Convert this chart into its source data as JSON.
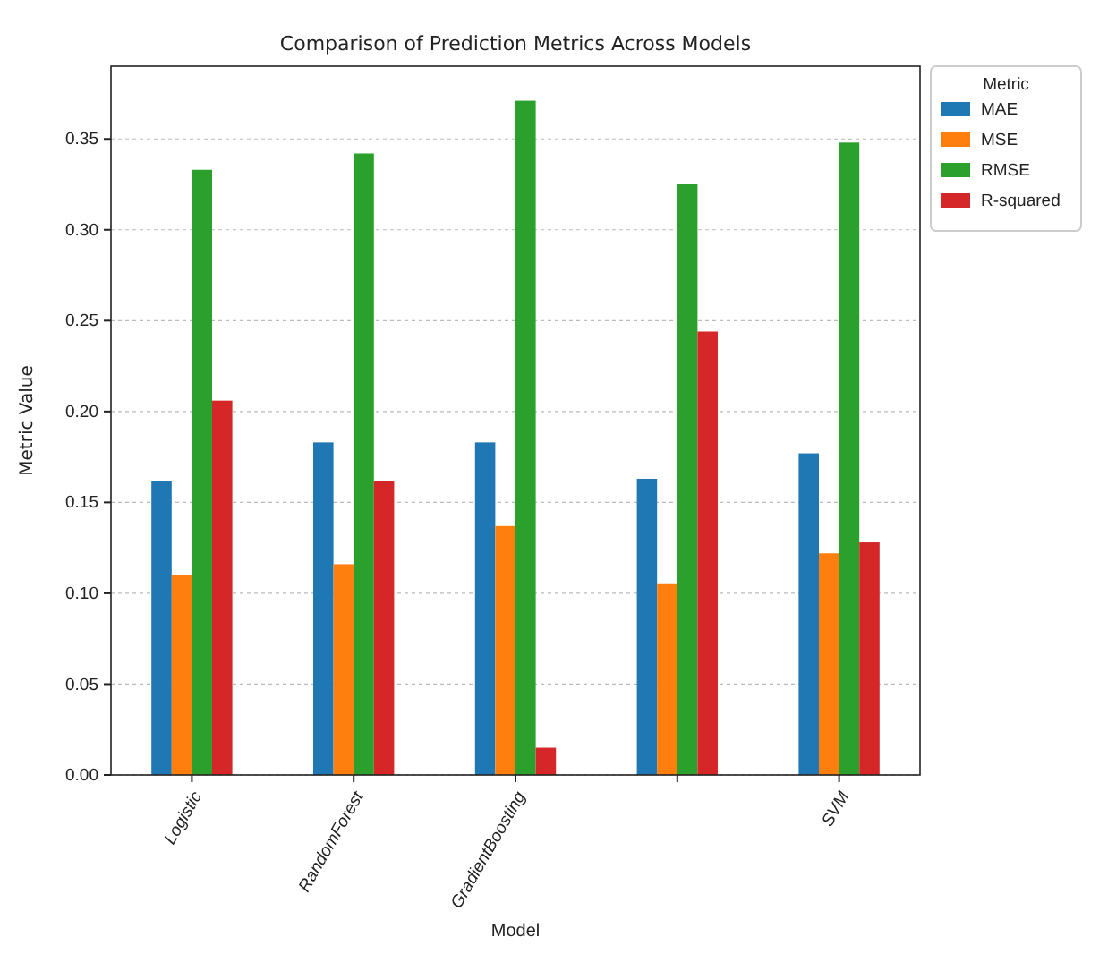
{
  "chart_data": {
    "type": "bar",
    "title": "Comparison of Prediction Metrics Across Models",
    "xlabel": "Model",
    "ylabel": "Metric Value",
    "legend_title": "Metric",
    "categories": [
      "Logistic",
      "RandomForest",
      "GradientBoosting",
      null,
      "SVM"
    ],
    "series": [
      {
        "name": "MAE",
        "color": "#1f77b4",
        "values": [
          0.162,
          0.183,
          0.183,
          0.163,
          0.177
        ]
      },
      {
        "name": "MSE",
        "color": "#ff7f0e",
        "values": [
          0.11,
          0.116,
          0.137,
          0.105,
          0.122
        ]
      },
      {
        "name": "RMSE",
        "color": "#2ca02c",
        "values": [
          0.333,
          0.342,
          0.371,
          0.325,
          0.348
        ]
      },
      {
        "name": "R-squared",
        "color": "#d62728",
        "values": [
          0.206,
          0.162,
          0.015,
          0.244,
          0.128
        ]
      }
    ],
    "ylim": [
      0,
      0.39
    ],
    "yticks": [
      {
        "value": 0,
        "label": "0.00"
      },
      {
        "value": 0.05,
        "label": "0.05"
      },
      {
        "value": 0.1,
        "label": "0.10"
      },
      {
        "value": 0.15,
        "label": "0.15"
      },
      {
        "value": 0.2,
        "label": "0.20"
      },
      {
        "value": 0.25,
        "label": "0.25"
      },
      {
        "value": 0.3,
        "label": "0.30"
      },
      {
        "value": 0.35,
        "label": "0.35"
      }
    ],
    "grid": "y",
    "legend": "top right"
  }
}
